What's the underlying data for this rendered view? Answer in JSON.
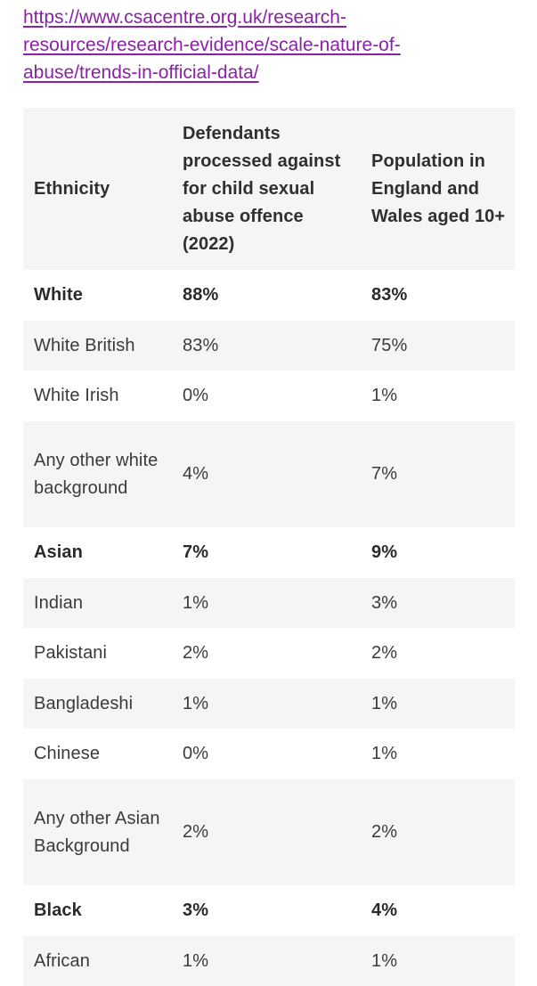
{
  "link": {
    "line1": "https://www.csacentre.org.uk/research-",
    "line2": "resources/research-evidence/scale-nature-of-",
    "line3": "abuse/trends-in-official-data/"
  },
  "table": {
    "headers": {
      "ethnicity": "Ethnicity",
      "defendants": "Defendants processed against for child sexual abuse offence (2022)",
      "population": "Population in England and Wales aged 10+"
    },
    "rows": [
      {
        "ethnicity": "White",
        "defendants": "88%",
        "population": "83%",
        "bold": true
      },
      {
        "ethnicity": "White British",
        "defendants": "83%",
        "population": "75%",
        "bold": false
      },
      {
        "ethnicity": "White Irish",
        "defendants": "0%",
        "population": "1%",
        "bold": false
      },
      {
        "ethnicity": "Any other white background",
        "defendants": "4%",
        "population": "7%",
        "bold": false
      },
      {
        "ethnicity": "Asian",
        "defendants": "7%",
        "population": "9%",
        "bold": true
      },
      {
        "ethnicity": "Indian",
        "defendants": "1%",
        "population": "3%",
        "bold": false
      },
      {
        "ethnicity": "Pakistani",
        "defendants": "2%",
        "population": "2%",
        "bold": false
      },
      {
        "ethnicity": "Bangladeshi",
        "defendants": "1%",
        "population": "1%",
        "bold": false
      },
      {
        "ethnicity": "Chinese",
        "defendants": "0%",
        "population": "1%",
        "bold": false
      },
      {
        "ethnicity": "Any other Asian Background",
        "defendants": "2%",
        "population": "2%",
        "bold": false
      },
      {
        "ethnicity": "Black",
        "defendants": "3%",
        "population": "4%",
        "bold": true
      },
      {
        "ethnicity": "African",
        "defendants": "1%",
        "population": "1%",
        "bold": false
      }
    ]
  },
  "colors": {
    "link": "#8a21a8",
    "stripe": "#f5f5f5"
  }
}
